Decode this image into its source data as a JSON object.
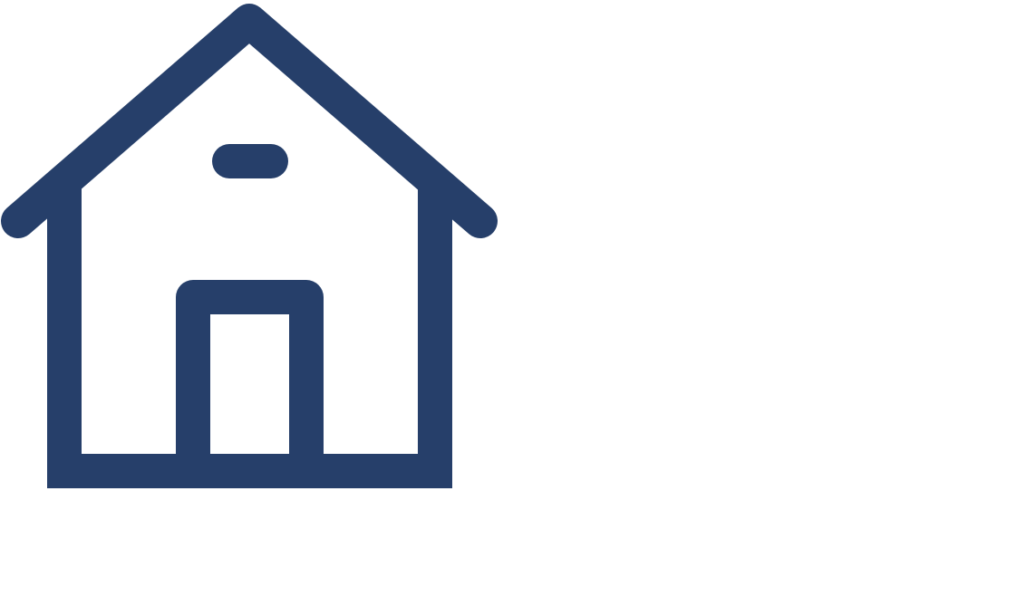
{
  "icon": {
    "name": "home-icon",
    "color": "#263f6a"
  },
  "background_color": "#ffffff"
}
